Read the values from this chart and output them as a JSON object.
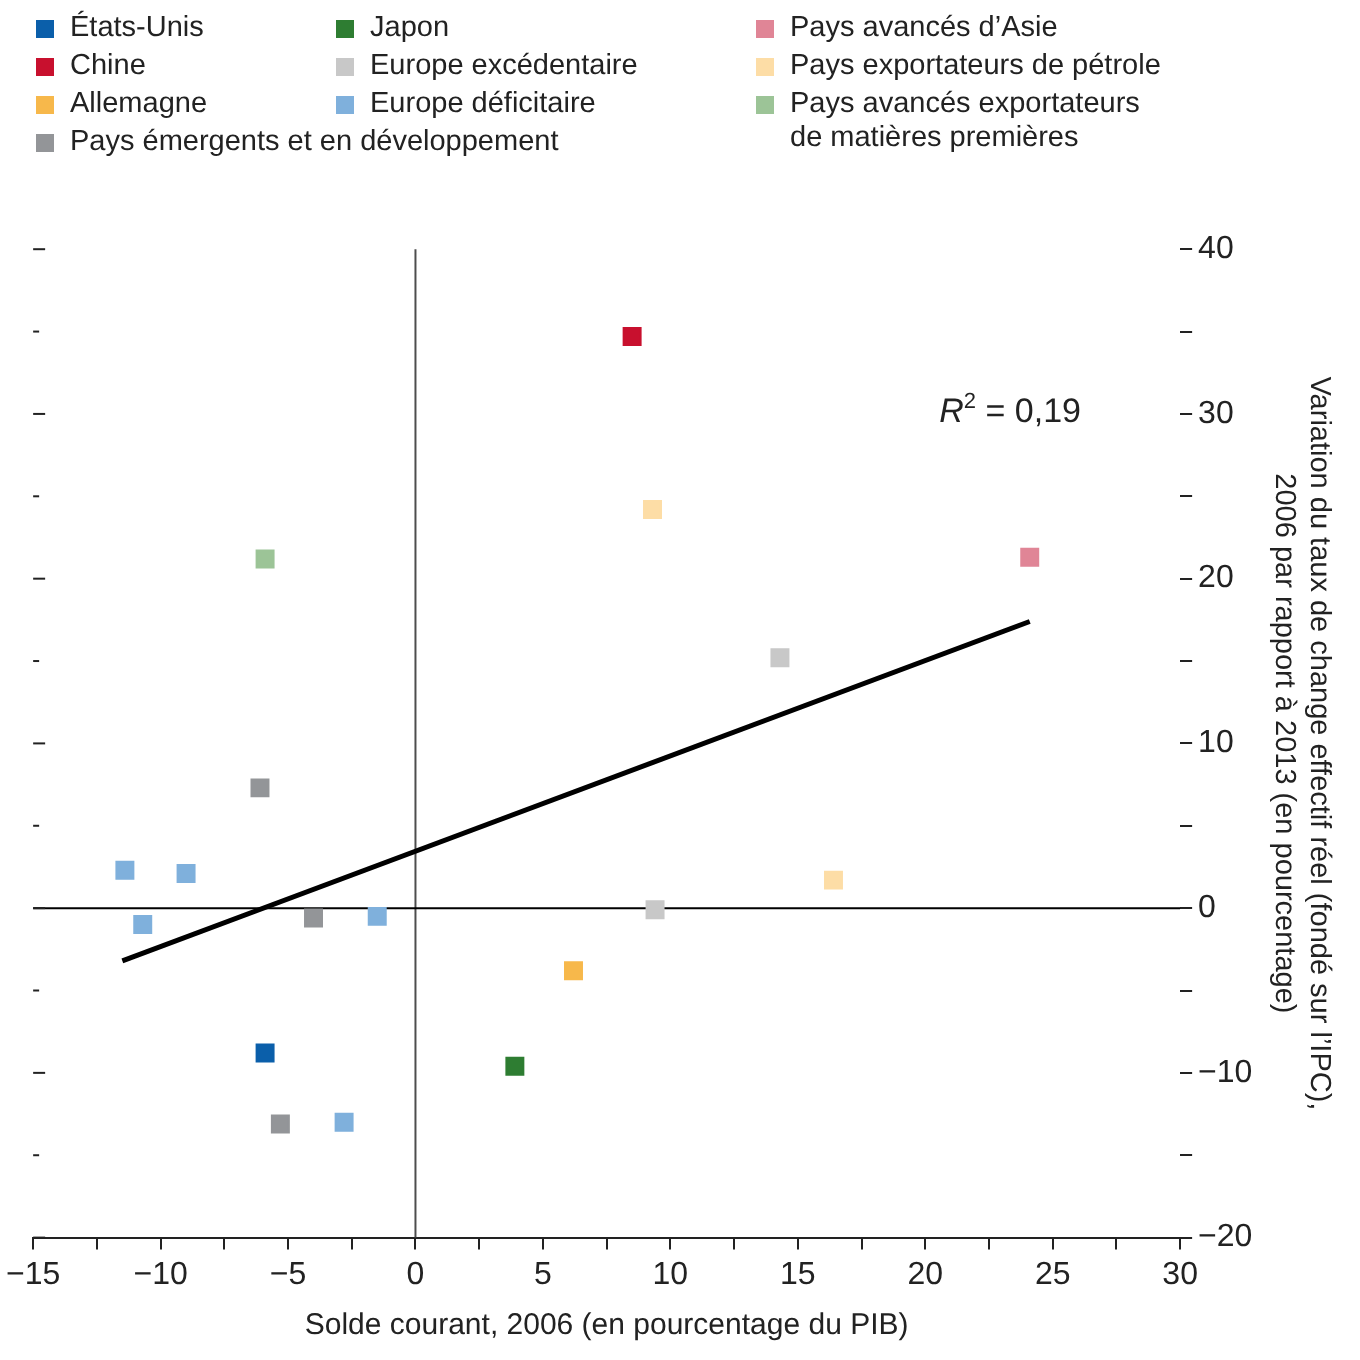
{
  "chart_data": {
    "type": "scatter",
    "xlabel": "Solde courant, 2006 (en pourcentage du PIB)",
    "ylabel": "Variation du taux de change effectif réel (fondé sur l’IPC), 2006 par rapport à 2013 (en pourcentage)",
    "marker": "square",
    "legend": "top",
    "grid": false,
    "xlim": [
      -15,
      30
    ],
    "xticks": [
      -15,
      {
        "value": -12.5,
        "label": null
      },
      -10,
      {
        "value": -7.5,
        "label": null
      },
      -5,
      {
        "value": -2.5,
        "label": null
      },
      0,
      {
        "value": 2.5,
        "label": null
      },
      5,
      {
        "value": 7.5,
        "label": null
      },
      10,
      {
        "value": 12.5,
        "label": null
      },
      15,
      {
        "value": 17.5,
        "label": null
      },
      20,
      {
        "value": 22.5,
        "label": null
      },
      25,
      {
        "value": 27.5,
        "label": null
      },
      30
    ],
    "ylim": [
      -20,
      40
    ],
    "yticks": [
      -20,
      {
        "value": -15,
        "label": null
      },
      -10,
      {
        "value": -5,
        "label": null
      },
      0,
      {
        "value": 5,
        "label": null
      },
      10,
      {
        "value": 15,
        "label": null
      },
      20,
      {
        "value": 25,
        "label": null
      },
      30,
      {
        "value": 35,
        "label": null
      },
      40
    ],
    "ref_lines": [
      {
        "axis": "x",
        "value": 0,
        "color": "#4d4d4d"
      },
      {
        "axis": "y",
        "value": 0,
        "color": "#000000"
      }
    ],
    "annotations": [
      "R$^{2}$ = 0,19"
    ],
    "series": [
      {
        "name": "États-Unis",
        "color": "#0b5faa",
        "x": [
          -5.9
        ],
        "values": [
          -8.8
        ]
      },
      {
        "name": "Chine",
        "color": "#c8102e",
        "x": [
          8.5
        ],
        "values": [
          34.7
        ]
      },
      {
        "name": "Allemagne",
        "color": "#f7b84b",
        "x": [
          6.2
        ],
        "values": [
          -3.8
        ]
      },
      {
        "name": "Pays émergents et en développement",
        "color": "#939598",
        "x": [
          -6.1,
          -4.0,
          -5.3
        ],
        "values": [
          7.3,
          -0.6,
          -13.1
        ]
      },
      {
        "name": "Japon",
        "color": "#2e7d32",
        "x": [
          3.9
        ],
        "values": [
          -9.6
        ]
      },
      {
        "name": "Europe excédentaire",
        "color": "#c8c8c8",
        "x": [
          14.3,
          9.4
        ],
        "values": [
          15.2,
          -0.1
        ]
      },
      {
        "name": "Europe déficitaire",
        "color": "#7fb0dc",
        "x": [
          -11.4,
          -9.0,
          -10.7,
          -1.5,
          -2.8
        ],
        "values": [
          2.3,
          2.1,
          -1.0,
          -0.5,
          -13.0
        ]
      },
      {
        "name": "Pays avancés d’Asie",
        "color": "#e08596",
        "x": [
          24.1
        ],
        "values": [
          21.3
        ]
      },
      {
        "name": "Pays exportateurs de pétrole",
        "color": "#fddda6",
        "x": [
          9.3,
          16.4
        ],
        "values": [
          24.2,
          1.7
        ]
      },
      {
        "name": "Pays avancés exportateurs de matières premières",
        "color": "#9cc497",
        "x": [
          -5.9
        ],
        "values": [
          21.2
        ]
      },
      {
        "type": "line",
        "marker": "none",
        "color": "#000000",
        "x": [
          -11.5,
          24.1
        ],
        "values": [
          -3.2,
          17.4
        ]
      }
    ]
  }
}
